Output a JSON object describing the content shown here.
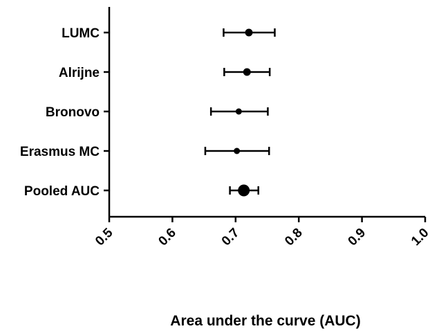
{
  "chart_data": {
    "type": "scatter",
    "subtype": "forest-plot",
    "title": "",
    "xlabel": "Area under the curve (AUC)",
    "ylabel": "",
    "xlim": [
      0.5,
      1.0
    ],
    "xticks": [
      0.5,
      0.6,
      0.7,
      0.8,
      0.9,
      1.0
    ],
    "xtick_labels": [
      "0.5",
      "0.6",
      "0.7",
      "0.8",
      "0.9",
      "1.0"
    ],
    "grid": false,
    "legend": "none",
    "categories": [
      "LUMC",
      "Alrijne",
      "Bronovo",
      "Erasmus MC",
      "Pooled AUC"
    ],
    "estimates": [
      0.721,
      0.718,
      0.705,
      0.702,
      0.713
    ],
    "ci_lower": [
      0.681,
      0.682,
      0.661,
      0.652,
      0.691
    ],
    "ci_upper": [
      0.762,
      0.754,
      0.751,
      0.753,
      0.736
    ],
    "pooled_index": 4,
    "color": "#000000"
  }
}
